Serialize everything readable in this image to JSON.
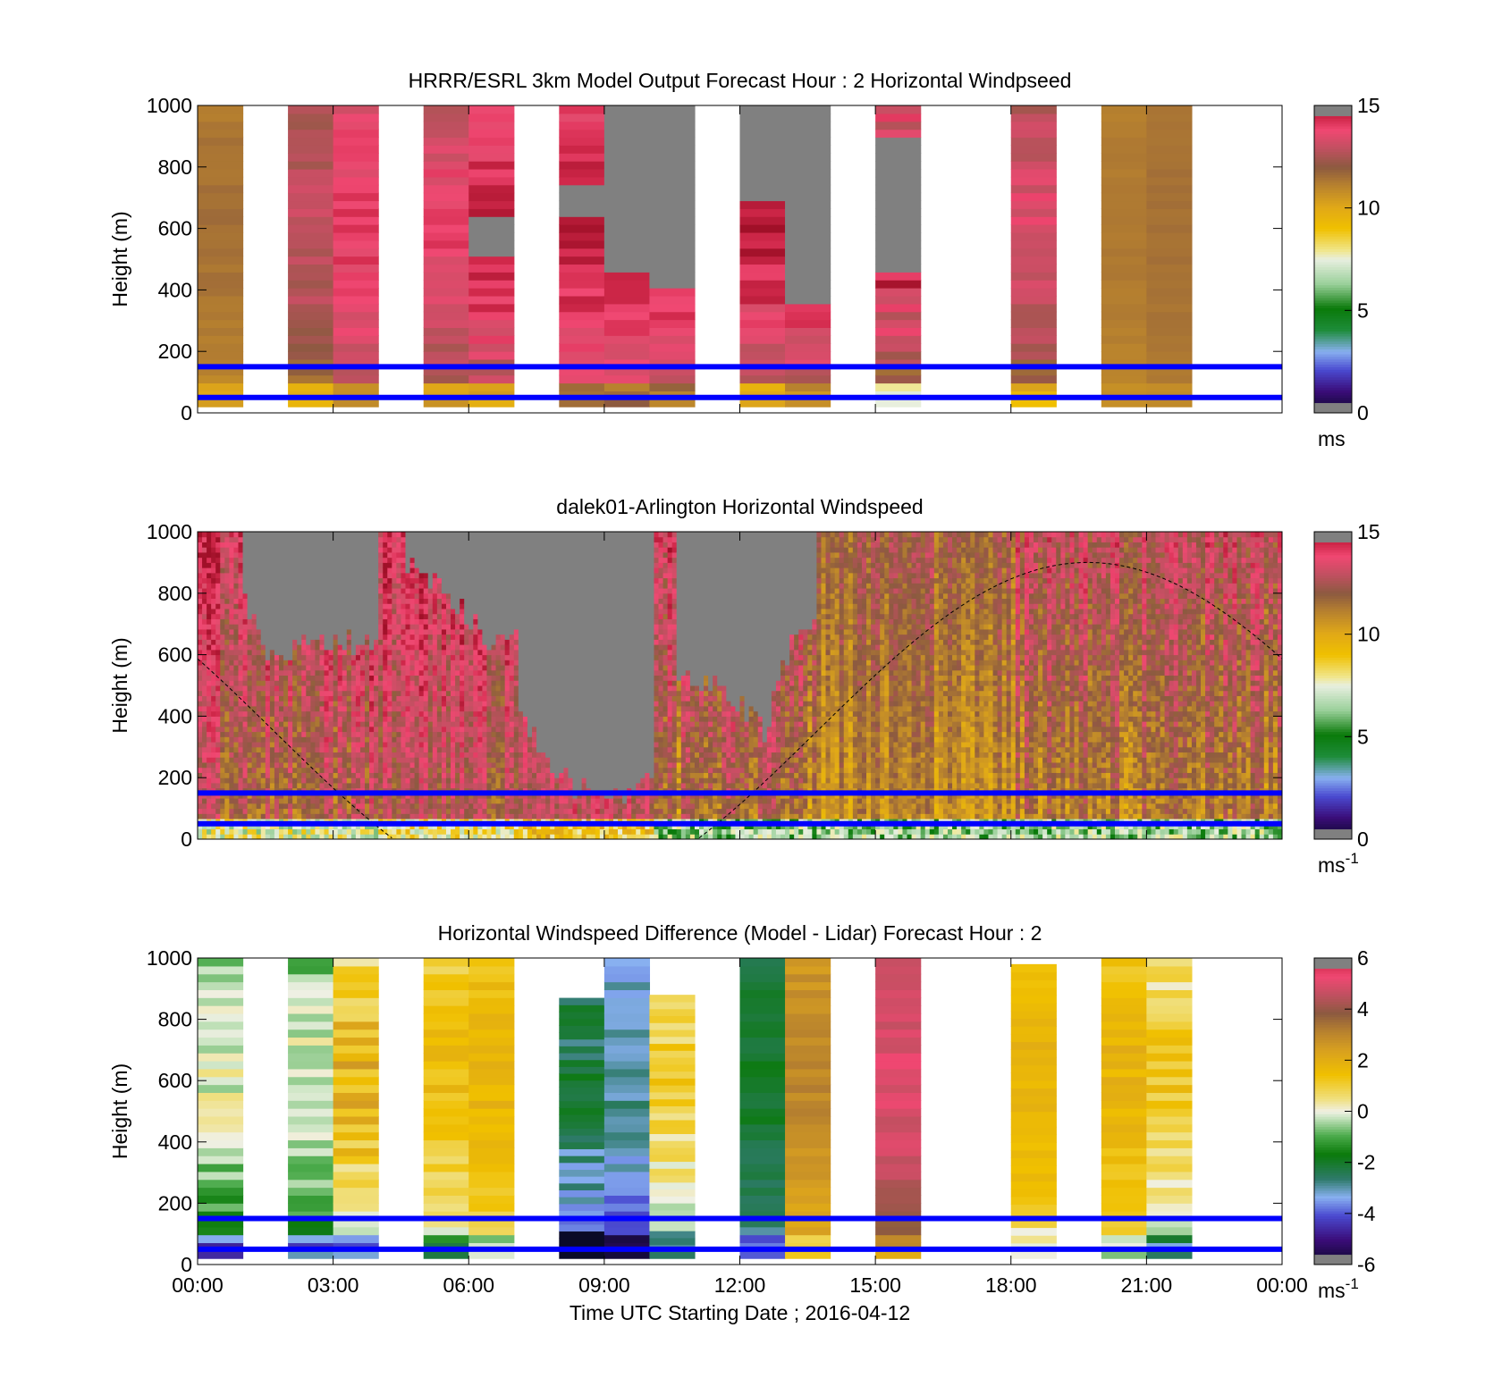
{
  "chart_data": [
    {
      "type": "heatmap",
      "title": "HRRR/ESRL 3km Model Output   Forecast Hour : 2 Horizontal Windpseed",
      "ylabel": "Height (m)",
      "ylim": [
        0,
        1000
      ],
      "yticks": [
        "0",
        "200",
        "400",
        "600",
        "800",
        "1000"
      ],
      "x_range_hours": [
        0,
        24
      ],
      "colorbar": {
        "min": 0,
        "max": 15,
        "ticks": [
          "0",
          "5",
          "10",
          "15"
        ],
        "unit": "ms",
        "colormap": "speed"
      },
      "reference_lines_m": [
        50,
        150
      ],
      "columns": [
        {
          "t": 0.0,
          "top": 1000,
          "low": 10.5,
          "high": 11.5
        },
        {
          "t": 2.0,
          "top": 1000,
          "low": 10.5,
          "high": 13.0
        },
        {
          "t": 3.0,
          "top": 1000,
          "low": 11.5,
          "high": 14.0
        },
        {
          "t": 5.0,
          "top": 1000,
          "low": 11.0,
          "high": 13.8
        },
        {
          "t": 6.0,
          "top": 1000,
          "low": 11.0,
          "high": 14.5,
          "gray": [
            [
              500,
              650
            ]
          ]
        },
        {
          "t": 8.0,
          "top": 1000,
          "low": 12.0,
          "high": 14.5,
          "gray": [
            [
              650,
              750
            ]
          ]
        },
        {
          "t": 9.0,
          "top": 1000,
          "low": 12.0,
          "high": 14.5,
          "gray": [
            [
              450,
              1000
            ]
          ]
        },
        {
          "t": 10.0,
          "top": 1000,
          "low": 12.0,
          "high": 14.5,
          "gray": [
            [
              400,
              1000
            ]
          ]
        },
        {
          "t": 12.0,
          "top": 1000,
          "low": 11.0,
          "high": 14.5,
          "gray": [
            [
              700,
              1000
            ]
          ]
        },
        {
          "t": 13.0,
          "top": 1000,
          "low": 11.5,
          "high": 14.5,
          "gray": [
            [
              350,
              1000
            ]
          ]
        },
        {
          "t": 15.0,
          "top": 1000,
          "low": 9.5,
          "high": 14.5,
          "gray": [
            [
              450,
              900
            ]
          ]
        },
        {
          "t": 18.0,
          "top": 1000,
          "low": 10.5,
          "high": 13.5
        },
        {
          "t": 20.0,
          "top": 1000,
          "low": 10.8,
          "high": 11.3
        },
        {
          "t": 21.0,
          "top": 1000,
          "low": 11.0,
          "high": 11.5
        }
      ]
    },
    {
      "type": "heatmap",
      "title": "dalek01-Arlington  Horizontal Windspeed",
      "ylabel": "Height (m)",
      "ylim": [
        0,
        1000
      ],
      "yticks": [
        "0",
        "200",
        "400",
        "600",
        "800",
        "1000"
      ],
      "x_range_hours": [
        0,
        24
      ],
      "colorbar": {
        "min": 0,
        "max": 15,
        "ticks": [
          "0",
          "5",
          "10",
          "15"
        ],
        "unit": "ms",
        "unit_exp": "-1",
        "colormap": "speed"
      },
      "reference_lines_m": [
        50,
        150
      ],
      "boundary_layer_curve": {
        "type": "sine",
        "amplitude_m": 1100,
        "offset_m": -200,
        "period_h": 24,
        "peak_h": 19.7
      },
      "regimes": [
        {
          "t0": 0.0,
          "t1": 4.0,
          "low": 10.0,
          "high": 14.5,
          "gray_from": [
            [
              0.9,
              820
            ],
            [
              1.5,
              600
            ],
            [
              3.0,
              650
            ],
            [
              4.0,
              620
            ]
          ]
        },
        {
          "t0": 4.0,
          "t1": 7.0,
          "low": 10.5,
          "high": 14.5,
          "gray_from": [
            [
              4.6,
              900
            ],
            [
              5.5,
              800
            ],
            [
              6.4,
              650
            ]
          ]
        },
        {
          "t0": 7.0,
          "t1": 10.0,
          "low": 11.5,
          "high": 14.8,
          "gray_from": [
            [
              7.0,
              420
            ],
            [
              8.0,
              200
            ],
            [
              9.0,
              120
            ],
            [
              10.0,
              180
            ]
          ]
        },
        {
          "t0": 10.0,
          "t1": 13.6,
          "low": 9.0,
          "high": 14.0,
          "gray_from": [
            [
              10.5,
              550
            ],
            [
              11.5,
              500
            ],
            [
              12.5,
              350
            ],
            [
              13.2,
              700
            ]
          ]
        },
        {
          "t0": 13.6,
          "t1": 18.0,
          "low": 9.0,
          "high": 12.5
        },
        {
          "t0": 18.0,
          "t1": 24.0,
          "low": 9.0,
          "high": 13.5
        }
      ]
    },
    {
      "type": "heatmap",
      "title": "Horizontal Windspeed Difference (Model - Lidar) Forecast Hour : 2",
      "ylabel": "Height (m)",
      "xlabel": "Time UTC  Starting Date ; 2016-04-12",
      "ylim": [
        0,
        1000
      ],
      "yticks": [
        "0",
        "200",
        "400",
        "600",
        "800",
        "1000"
      ],
      "xticks": [
        "00:00",
        "03:00",
        "06:00",
        "09:00",
        "12:00",
        "15:00",
        "18:00",
        "21:00",
        "00:00"
      ],
      "x_range_hours": [
        0,
        24
      ],
      "colorbar": {
        "min": -6,
        "max": 6,
        "ticks": [
          "-6",
          "-4",
          "-2",
          "0",
          "2",
          "4",
          "6"
        ],
        "unit": "ms",
        "unit_exp": "-1",
        "colormap": "diff"
      },
      "reference_lines_m": [
        50,
        150
      ],
      "columns": [
        {
          "t": 0.0,
          "top": 1000,
          "low": -3.2,
          "high": 0.0
        },
        {
          "t": 2.0,
          "top": 1000,
          "low": -3.0,
          "high": 0.0
        },
        {
          "t": 3.0,
          "top": 1000,
          "low": -3.0,
          "high": 1.8
        },
        {
          "t": 5.0,
          "top": 1000,
          "low": -1.0,
          "high": 1.5
        },
        {
          "t": 6.0,
          "top": 1000,
          "low": 0.0,
          "high": 1.8
        },
        {
          "t": 8.0,
          "top": 870,
          "low": -5.8,
          "high": -2.2
        },
        {
          "t": 9.0,
          "top": 1000,
          "low": -5.2,
          "high": -2.8
        },
        {
          "t": 10.0,
          "top": 880,
          "low": -2.2,
          "high": 1.0
        },
        {
          "t": 12.0,
          "top": 1000,
          "low": -3.5,
          "high": -2.0
        },
        {
          "t": 13.0,
          "top": 1000,
          "low": 1.5,
          "high": 3.0
        },
        {
          "t": 15.0,
          "top": 1000,
          "low": 3.0,
          "high": 5.0
        },
        {
          "t": 18.0,
          "top": 980,
          "low": 0.5,
          "high": 1.8
        },
        {
          "t": 20.0,
          "top": 1000,
          "low": 0.0,
          "high": 1.8
        },
        {
          "t": 21.0,
          "top": 1000,
          "low": -2.0,
          "high": 1.2
        }
      ]
    }
  ]
}
